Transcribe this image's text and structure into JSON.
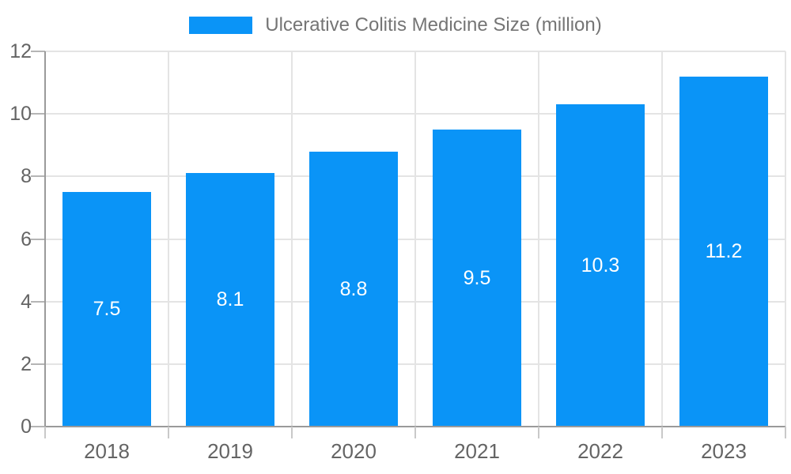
{
  "chart_data": {
    "type": "bar",
    "title": "",
    "legend_label": "Ulcerative Colitis Medicine Size (million)",
    "categories": [
      "2018",
      "2019",
      "2020",
      "2021",
      "2022",
      "2023"
    ],
    "values": [
      7.5,
      8.1,
      8.8,
      9.5,
      10.3,
      11.2
    ],
    "series": [
      {
        "name": "Ulcerative Colitis Medicine Size (million)",
        "values": [
          7.5,
          8.1,
          8.8,
          9.5,
          10.3,
          11.2
        ]
      }
    ],
    "xlabel": "",
    "ylabel": "",
    "ylim": [
      0,
      12
    ],
    "yticks": [
      0,
      2,
      4,
      6,
      8,
      10,
      12
    ],
    "grid": true,
    "legend_position": "top",
    "value_labels": "inside-center"
  },
  "colors": {
    "bar": "#0a94f7",
    "grid": "#e4e4e4",
    "axis_line": "#9a9a9a",
    "tick": "#b5b5b5",
    "tick_minor": "#c9c9c9",
    "axis_text": "#646464",
    "legend_text": "#757575",
    "value_text": "#ffffff",
    "background": "#ffffff"
  }
}
